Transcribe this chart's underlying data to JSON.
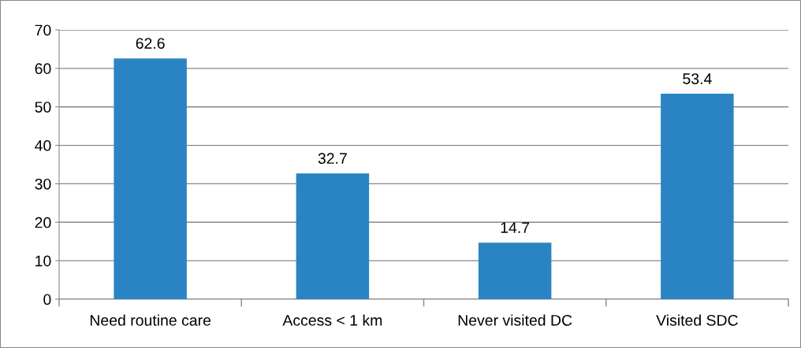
{
  "chart_data": {
    "type": "bar",
    "categories": [
      "Need routine care",
      "Access < 1 km",
      "Never visited DC",
      "Visited SDC"
    ],
    "values": [
      62.6,
      32.7,
      14.7,
      53.4
    ],
    "color": "#2a84c4",
    "ylim": [
      0,
      70
    ],
    "yticks": [
      0,
      10,
      20,
      30,
      40,
      50,
      60,
      70
    ],
    "grid": "y",
    "data_labels": true,
    "legend": false
  }
}
